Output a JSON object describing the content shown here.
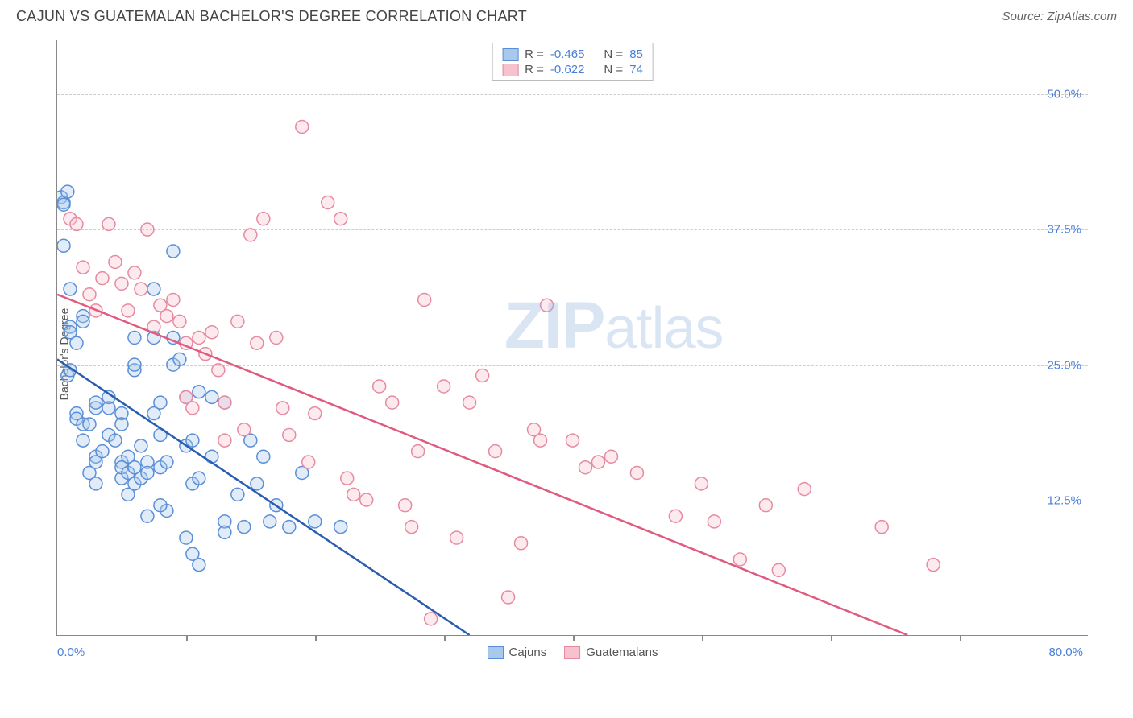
{
  "header": {
    "title": "CAJUN VS GUATEMALAN BACHELOR'S DEGREE CORRELATION CHART",
    "source": "Source: ZipAtlas.com"
  },
  "watermark": {
    "zip": "ZIP",
    "atlas": "atlas"
  },
  "chart": {
    "type": "scatter",
    "ylabel": "Bachelor's Degree",
    "xlim": [
      0,
      80
    ],
    "ylim": [
      0,
      55
    ],
    "x_axis_start_label": "0.0%",
    "x_axis_end_label": "80.0%",
    "x_ticks": [
      10,
      20,
      30,
      40,
      50,
      60,
      70
    ],
    "y_gridlines": [
      {
        "value": 12.5,
        "label": "12.5%"
      },
      {
        "value": 25.0,
        "label": "25.0%"
      },
      {
        "value": 37.5,
        "label": "37.5%"
      },
      {
        "value": 50.0,
        "label": "50.0%"
      }
    ],
    "background_color": "#ffffff",
    "grid_color": "#cccccc",
    "marker_radius": 8,
    "marker_stroke_width": 1.5,
    "marker_fill_opacity": 0.35,
    "line_width": 2.5,
    "series": [
      {
        "name": "Cajuns",
        "fill": "#a8c8ec",
        "stroke": "#5a8fd8",
        "line_color": "#2a5db0",
        "R": "-0.465",
        "N": "85",
        "trend": {
          "x1": 0,
          "y1": 25.5,
          "x2": 32,
          "y2": 0
        },
        "points": [
          [
            0.3,
            40.5
          ],
          [
            0.5,
            40
          ],
          [
            0.5,
            39.8
          ],
          [
            0.8,
            41
          ],
          [
            0.5,
            36
          ],
          [
            1,
            32
          ],
          [
            1,
            28.5
          ],
          [
            1,
            28
          ],
          [
            1.5,
            27
          ],
          [
            0.8,
            24
          ],
          [
            1,
            24.5
          ],
          [
            2,
            29.5
          ],
          [
            2,
            29
          ],
          [
            1.5,
            20.5
          ],
          [
            1.5,
            20
          ],
          [
            2,
            19.5
          ],
          [
            2,
            18
          ],
          [
            2.5,
            19.5
          ],
          [
            3,
            21
          ],
          [
            3,
            21.5
          ],
          [
            2.5,
            15
          ],
          [
            3,
            16.5
          ],
          [
            3,
            16
          ],
          [
            3,
            14
          ],
          [
            3.5,
            17
          ],
          [
            4,
            21
          ],
          [
            4,
            22
          ],
          [
            4,
            18.5
          ],
          [
            4.5,
            18
          ],
          [
            5,
            20.5
          ],
          [
            5,
            19.5
          ],
          [
            5,
            16
          ],
          [
            5.5,
            16.5
          ],
          [
            5,
            14.5
          ],
          [
            5,
            15.5
          ],
          [
            5.5,
            15
          ],
          [
            5.5,
            13
          ],
          [
            6,
            27.5
          ],
          [
            6,
            24.5
          ],
          [
            6,
            25
          ],
          [
            6.5,
            17.5
          ],
          [
            6,
            15.5
          ],
          [
            6,
            14
          ],
          [
            6.5,
            14.5
          ],
          [
            7,
            16
          ],
          [
            7,
            15
          ],
          [
            7.5,
            32
          ],
          [
            7.5,
            27.5
          ],
          [
            7.5,
            20.5
          ],
          [
            8,
            21.5
          ],
          [
            8,
            18.5
          ],
          [
            8,
            15.5
          ],
          [
            8.5,
            16
          ],
          [
            8.5,
            11.5
          ],
          [
            8,
            12
          ],
          [
            7,
            11
          ],
          [
            9,
            35.5
          ],
          [
            9,
            25
          ],
          [
            9,
            27.5
          ],
          [
            9.5,
            25.5
          ],
          [
            10,
            22
          ],
          [
            10,
            17.5
          ],
          [
            10.5,
            18
          ],
          [
            11,
            22.5
          ],
          [
            10.5,
            14
          ],
          [
            11,
            14.5
          ],
          [
            10,
            9
          ],
          [
            10.5,
            7.5
          ],
          [
            11,
            6.5
          ],
          [
            12,
            22
          ],
          [
            12,
            16.5
          ],
          [
            13,
            21.5
          ],
          [
            13,
            10.5
          ],
          [
            13,
            9.5
          ],
          [
            14,
            13
          ],
          [
            14.5,
            10
          ],
          [
            15,
            18
          ],
          [
            15.5,
            14
          ],
          [
            16,
            16.5
          ],
          [
            16.5,
            10.5
          ],
          [
            17,
            12
          ],
          [
            18,
            10
          ],
          [
            19,
            15
          ],
          [
            20,
            10.5
          ],
          [
            22,
            10
          ]
        ]
      },
      {
        "name": "Guatemalans",
        "fill": "#f5c2ce",
        "stroke": "#e68aa0",
        "line_color": "#e05a80",
        "R": "-0.622",
        "N": "74",
        "trend": {
          "x1": 0,
          "y1": 31.5,
          "x2": 66,
          "y2": 0
        },
        "points": [
          [
            1,
            38.5
          ],
          [
            1.5,
            38
          ],
          [
            2,
            34
          ],
          [
            2.5,
            31.5
          ],
          [
            3,
            30
          ],
          [
            3.5,
            33
          ],
          [
            4,
            38
          ],
          [
            4.5,
            34.5
          ],
          [
            5,
            32.5
          ],
          [
            5.5,
            30
          ],
          [
            6,
            33.5
          ],
          [
            6.5,
            32
          ],
          [
            7,
            37.5
          ],
          [
            7.5,
            28.5
          ],
          [
            8,
            30.5
          ],
          [
            8.5,
            29.5
          ],
          [
            9,
            31
          ],
          [
            9.5,
            29
          ],
          [
            10,
            27
          ],
          [
            10,
            22
          ],
          [
            10.5,
            21
          ],
          [
            11,
            27.5
          ],
          [
            11.5,
            26
          ],
          [
            12,
            28
          ],
          [
            12.5,
            24.5
          ],
          [
            13,
            21.5
          ],
          [
            13,
            18
          ],
          [
            14,
            29
          ],
          [
            14.5,
            19
          ],
          [
            15,
            37
          ],
          [
            15.5,
            27
          ],
          [
            16,
            38.5
          ],
          [
            17,
            27.5
          ],
          [
            17.5,
            21
          ],
          [
            18,
            18.5
          ],
          [
            19,
            47
          ],
          [
            19.5,
            16
          ],
          [
            20,
            20.5
          ],
          [
            21,
            40
          ],
          [
            22,
            38.5
          ],
          [
            22.5,
            14.5
          ],
          [
            23,
            13
          ],
          [
            24,
            12.5
          ],
          [
            25,
            23
          ],
          [
            26,
            21.5
          ],
          [
            27,
            12
          ],
          [
            27.5,
            10
          ],
          [
            28,
            17
          ],
          [
            28.5,
            31
          ],
          [
            29,
            1.5
          ],
          [
            30,
            23
          ],
          [
            31,
            9
          ],
          [
            32,
            21.5
          ],
          [
            33,
            24
          ],
          [
            34,
            17
          ],
          [
            35,
            3.5
          ],
          [
            36,
            8.5
          ],
          [
            37,
            19
          ],
          [
            37.5,
            18
          ],
          [
            38,
            30.5
          ],
          [
            40,
            18
          ],
          [
            41,
            15.5
          ],
          [
            42,
            16
          ],
          [
            43,
            16.5
          ],
          [
            45,
            15
          ],
          [
            48,
            11
          ],
          [
            50,
            14
          ],
          [
            51,
            10.5
          ],
          [
            53,
            7
          ],
          [
            55,
            12
          ],
          [
            56,
            6
          ],
          [
            58,
            13.5
          ],
          [
            64,
            10
          ],
          [
            68,
            6.5
          ]
        ]
      }
    ],
    "legend_top": {
      "R_label": "R =",
      "N_label": "N ="
    },
    "legend_bottom_labels": [
      "Cajuns",
      "Guatemalans"
    ]
  }
}
